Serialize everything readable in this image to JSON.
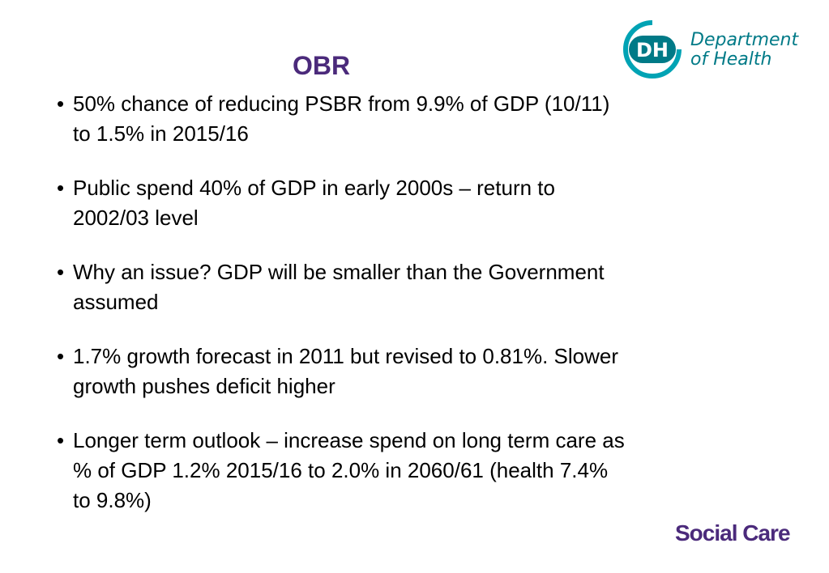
{
  "slide": {
    "title": "OBR",
    "logo": {
      "mark_text": "DH",
      "line1": "Department",
      "line2": "of Health",
      "color": "#007a87",
      "accent": "#00a3b4"
    },
    "bullet_symbol": "•",
    "bullets": [
      {
        "line1": "50% chance of reducing PSBR from 9.9% of GDP (10/11)",
        "line2": "to 1.5% in 2015/16"
      },
      {
        "line1": "Public spend 40% of GDP in early 2000s – return to",
        "line2": "2002/03 level"
      },
      {
        "line1": "Why an issue? GDP will be smaller than the Government",
        "line2": "assumed"
      },
      {
        "line1": "1.7% growth forecast in 2011 but revised to 0.81%. Slower",
        "line2": "growth pushes deficit higher"
      },
      {
        "line1": "Longer term outlook – increase spend on long term care as",
        "line2": "% of GDP 1.2% 2015/16 to 2.0% in 2060/61 (health 7.4%",
        "line3": "to 9.8%)"
      }
    ],
    "footer": "Social Care",
    "title_color": "#4b2a7b"
  }
}
